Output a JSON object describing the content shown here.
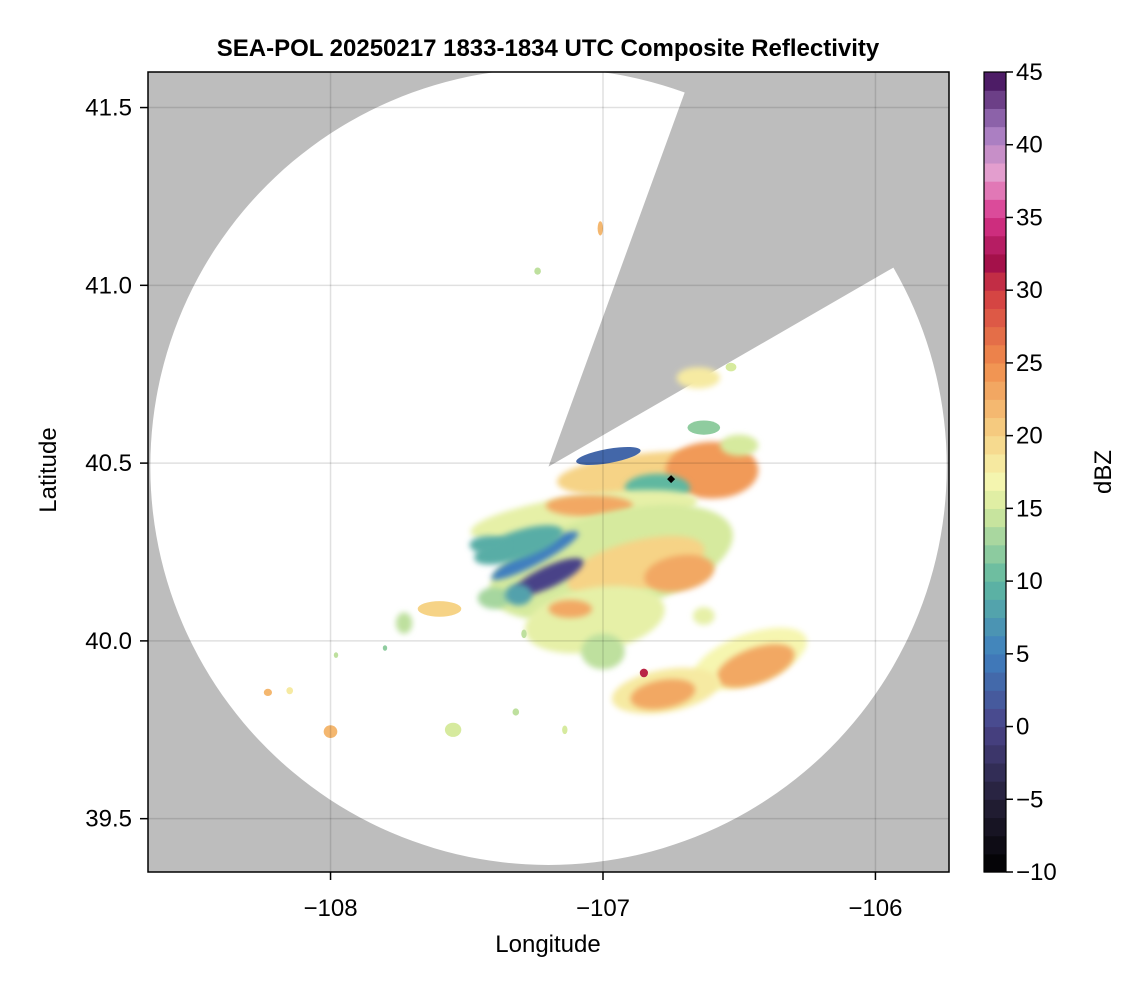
{
  "chart_data": {
    "type": "heatmap",
    "title": "SEA-POL 20250217 1833-1834 UTC Composite Reflectivity",
    "xlabel": "Longitude",
    "ylabel": "Latitude",
    "xlim": [
      -108.67,
      -105.73
    ],
    "ylim": [
      39.35,
      41.6
    ],
    "x_ticks": [
      -108,
      -107,
      -106
    ],
    "x_tick_labels": [
      "−108",
      "−107",
      "−106"
    ],
    "y_ticks": [
      39.5,
      40.0,
      40.5,
      41.0,
      41.5
    ],
    "y_tick_labels": [
      "39.5",
      "40.0",
      "40.5",
      "41.0",
      "41.5"
    ],
    "grid": true,
    "background_color": "#bdbdbd",
    "radar_coverage": {
      "center": [
        -107.2,
        40.49
      ],
      "radius_deg_lat": 1.12,
      "blocked_sector_azimuth_deg": [
        20,
        60
      ],
      "fill_color": "#ffffff"
    },
    "radar_site_marker": {
      "lon": -106.75,
      "lat": 40.455,
      "symbol": "diamond",
      "color": "#000000"
    },
    "colorbar": {
      "label": "dBZ",
      "range": [
        -10,
        45
      ],
      "ticks": [
        -10,
        -5,
        0,
        5,
        10,
        15,
        20,
        25,
        30,
        35,
        40,
        45
      ],
      "tick_labels": [
        "−10",
        "−5",
        "0",
        "5",
        "10",
        "15",
        "20",
        "25",
        "30",
        "35",
        "40",
        "45"
      ],
      "colormap_stops": [
        {
          "v": -10,
          "c": "#000000"
        },
        {
          "v": -5,
          "c": "#242038"
        },
        {
          "v": 0,
          "c": "#4a4388"
        },
        {
          "v": 5,
          "c": "#3f7fbf"
        },
        {
          "v": 10,
          "c": "#5fb8a0"
        },
        {
          "v": 15,
          "c": "#d6ea9e"
        },
        {
          "v": 17,
          "c": "#f6f6b0"
        },
        {
          "v": 20,
          "c": "#f6d386"
        },
        {
          "v": 25,
          "c": "#f08c4c"
        },
        {
          "v": 30,
          "c": "#d13b42"
        },
        {
          "v": 32,
          "c": "#a10e4a"
        },
        {
          "v": 35,
          "c": "#d8358c"
        },
        {
          "v": 38,
          "c": "#e6a0cf"
        },
        {
          "v": 41,
          "c": "#a27ac0"
        },
        {
          "v": 45,
          "c": "#3d0a55"
        }
      ]
    },
    "echo_cells": [
      {
        "lon": -106.82,
        "lat": 40.47,
        "dlon": 0.35,
        "dlat": 0.06,
        "dbz": 20,
        "rot": -5
      },
      {
        "lon": -106.6,
        "lat": 40.48,
        "dlon": 0.17,
        "dlat": 0.08,
        "dbz": 24,
        "rot": 0
      },
      {
        "lon": -106.98,
        "lat": 40.52,
        "dlon": 0.12,
        "dlat": 0.02,
        "dbz": 3,
        "rot": -10
      },
      {
        "lon": -106.8,
        "lat": 40.43,
        "dlon": 0.12,
        "dlat": 0.04,
        "dbz": 10,
        "rot": 0
      },
      {
        "lon": -106.63,
        "lat": 40.6,
        "dlon": 0.06,
        "dlat": 0.02,
        "dbz": 12,
        "rot": 0
      },
      {
        "lon": -106.5,
        "lat": 40.55,
        "dlon": 0.07,
        "dlat": 0.03,
        "dbz": 15,
        "rot": 0
      },
      {
        "lon": -106.65,
        "lat": 40.74,
        "dlon": 0.08,
        "dlat": 0.03,
        "dbz": 18,
        "rot": 0
      },
      {
        "lon": -106.53,
        "lat": 40.77,
        "dlon": 0.02,
        "dlat": 0.012,
        "dbz": 15,
        "rot": 0
      },
      {
        "lon": -107.07,
        "lat": 40.35,
        "dlon": 0.42,
        "dlat": 0.06,
        "dbz": 16,
        "rot": -8
      },
      {
        "lon": -107.05,
        "lat": 40.38,
        "dlon": 0.16,
        "dlat": 0.03,
        "dbz": 23,
        "rot": 0
      },
      {
        "lon": -106.97,
        "lat": 40.22,
        "dlon": 0.46,
        "dlat": 0.14,
        "dbz": 15,
        "rot": -15
      },
      {
        "lon": -106.88,
        "lat": 40.21,
        "dlon": 0.26,
        "dlat": 0.07,
        "dbz": 20,
        "rot": -15
      },
      {
        "lon": -106.72,
        "lat": 40.19,
        "dlon": 0.13,
        "dlat": 0.05,
        "dbz": 23,
        "rot": -10
      },
      {
        "lon": -107.03,
        "lat": 40.06,
        "dlon": 0.26,
        "dlat": 0.09,
        "dbz": 16,
        "rot": -10
      },
      {
        "lon": -107.12,
        "lat": 40.09,
        "dlon": 0.08,
        "dlat": 0.025,
        "dbz": 23,
        "rot": 0
      },
      {
        "lon": -107.0,
        "lat": 39.97,
        "dlon": 0.08,
        "dlat": 0.05,
        "dbz": 14,
        "rot": 0
      },
      {
        "lon": -107.25,
        "lat": 40.24,
        "dlon": 0.18,
        "dlat": 0.025,
        "dbz": 5,
        "rot": -28
      },
      {
        "lon": -107.2,
        "lat": 40.18,
        "dlon": 0.14,
        "dlat": 0.03,
        "dbz": 0,
        "rot": -25
      },
      {
        "lon": -107.31,
        "lat": 40.27,
        "dlon": 0.17,
        "dlat": 0.04,
        "dbz": 9,
        "rot": -18
      },
      {
        "lon": -107.42,
        "lat": 40.27,
        "dlon": 0.07,
        "dlat": 0.025,
        "dbz": 9,
        "rot": 0
      },
      {
        "lon": -107.4,
        "lat": 40.12,
        "dlon": 0.06,
        "dlat": 0.03,
        "dbz": 13,
        "rot": 0
      },
      {
        "lon": -107.31,
        "lat": 40.13,
        "dlon": 0.05,
        "dlat": 0.03,
        "dbz": 8,
        "rot": 0
      },
      {
        "lon": -106.46,
        "lat": 39.95,
        "dlon": 0.22,
        "dlat": 0.07,
        "dbz": 17,
        "rot": -20
      },
      {
        "lon": -106.44,
        "lat": 39.93,
        "dlon": 0.15,
        "dlat": 0.05,
        "dbz": 23,
        "rot": -20
      },
      {
        "lon": -106.77,
        "lat": 39.86,
        "dlon": 0.2,
        "dlat": 0.06,
        "dbz": 18,
        "rot": -10
      },
      {
        "lon": -106.78,
        "lat": 39.85,
        "dlon": 0.12,
        "dlat": 0.04,
        "dbz": 23,
        "rot": -10
      },
      {
        "lon": -106.85,
        "lat": 39.91,
        "dlon": 0.015,
        "dlat": 0.012,
        "dbz": 31,
        "rot": 0
      },
      {
        "lon": -107.6,
        "lat": 40.09,
        "dlon": 0.08,
        "dlat": 0.022,
        "dbz": 20,
        "rot": 0
      },
      {
        "lon": -107.73,
        "lat": 40.05,
        "dlon": 0.03,
        "dlat": 0.03,
        "dbz": 14,
        "rot": 0
      },
      {
        "lon": -108.0,
        "lat": 39.745,
        "dlon": 0.025,
        "dlat": 0.018,
        "dbz": 22,
        "rot": 0
      },
      {
        "lon": -108.23,
        "lat": 39.855,
        "dlon": 0.015,
        "dlat": 0.01,
        "dbz": 22,
        "rot": 0
      },
      {
        "lon": -108.15,
        "lat": 39.86,
        "dlon": 0.012,
        "dlat": 0.01,
        "dbz": 18,
        "rot": 0
      },
      {
        "lon": -107.55,
        "lat": 39.75,
        "dlon": 0.03,
        "dlat": 0.02,
        "dbz": 15,
        "rot": 0
      },
      {
        "lon": -106.63,
        "lat": 40.07,
        "dlon": 0.04,
        "dlat": 0.025,
        "dbz": 16,
        "rot": 0
      },
      {
        "lon": -107.01,
        "lat": 41.16,
        "dlon": 0.01,
        "dlat": 0.02,
        "dbz": 22,
        "rot": 0
      },
      {
        "lon": -107.24,
        "lat": 41.04,
        "dlon": 0.012,
        "dlat": 0.01,
        "dbz": 14,
        "rot": 0
      },
      {
        "lon": -107.29,
        "lat": 40.02,
        "dlon": 0.01,
        "dlat": 0.012,
        "dbz": 14,
        "rot": 0
      },
      {
        "lon": -107.14,
        "lat": 39.75,
        "dlon": 0.01,
        "dlat": 0.012,
        "dbz": 15,
        "rot": 0
      },
      {
        "lon": -107.32,
        "lat": 39.8,
        "dlon": 0.012,
        "dlat": 0.01,
        "dbz": 14,
        "rot": 0
      },
      {
        "lon": -107.98,
        "lat": 39.96,
        "dlon": 0.008,
        "dlat": 0.008,
        "dbz": 14,
        "rot": 0
      },
      {
        "lon": -107.8,
        "lat": 39.98,
        "dlon": 0.008,
        "dlat": 0.008,
        "dbz": 12,
        "rot": 0
      }
    ]
  }
}
